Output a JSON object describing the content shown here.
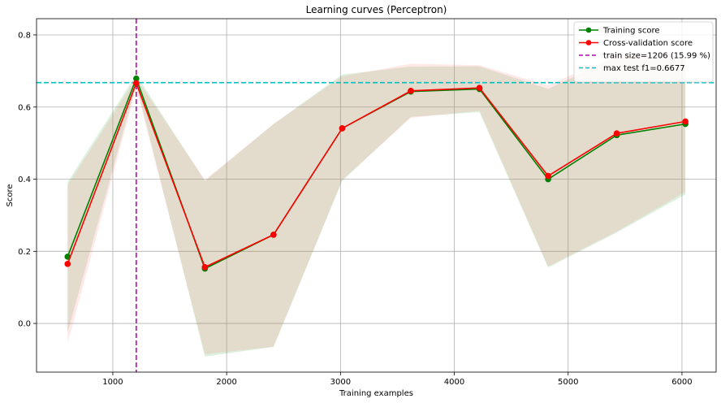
{
  "chart_data": {
    "type": "line",
    "title": "Learning curves (Perceptron)",
    "xlabel": "Training examples",
    "ylabel": "Score",
    "xlim": [
      330,
      6300
    ],
    "ylim": [
      -0.135,
      0.845
    ],
    "xticks": [
      1000,
      2000,
      3000,
      4000,
      5000,
      6000
    ],
    "yticks": [
      0.0,
      0.2,
      0.4,
      0.6,
      0.8
    ],
    "xtick_labels": [
      "1000",
      "2000",
      "3000",
      "4000",
      "5000",
      "6000"
    ],
    "ytick_labels": [
      "0.0",
      "0.2",
      "0.4",
      "0.6",
      "0.8"
    ],
    "grid": true,
    "legend_position": "top-right",
    "x": [
      603,
      1206,
      1809,
      2412,
      3015,
      3618,
      4221,
      4824,
      5427,
      6030
    ],
    "series": [
      {
        "name": "Training score",
        "color": "#008000",
        "values": [
          0.185,
          0.679,
          0.152,
          0.246,
          0.541,
          0.643,
          0.65,
          0.4,
          0.522,
          0.553
        ],
        "band_upper": [
          0.392,
          0.69,
          0.395,
          0.553,
          0.69,
          0.712,
          0.713,
          0.65,
          0.74,
          0.735
        ],
        "band_lower": [
          -0.025,
          0.663,
          -0.092,
          -0.065,
          0.395,
          0.573,
          0.586,
          0.155,
          0.252,
          0.358
        ]
      },
      {
        "name": "Cross-validation score",
        "color": "#ff0000",
        "values": [
          0.165,
          0.666,
          0.156,
          0.246,
          0.541,
          0.645,
          0.653,
          0.409,
          0.527,
          0.56
        ],
        "band_upper": [
          0.383,
          0.68,
          0.398,
          0.553,
          0.685,
          0.72,
          0.716,
          0.66,
          0.745,
          0.74
        ],
        "band_lower": [
          -0.055,
          0.652,
          -0.085,
          -0.065,
          0.398,
          0.57,
          0.59,
          0.158,
          0.255,
          0.365
        ]
      }
    ],
    "reference_lines": [
      {
        "name": "train size=1206 (15.99 %)",
        "orientation": "vertical",
        "value": 1206,
        "color": "#bf00bf"
      },
      {
        "name": "max test f1=0.6677",
        "orientation": "horizontal",
        "value": 0.6677,
        "color": "#00bfbf"
      }
    ]
  }
}
